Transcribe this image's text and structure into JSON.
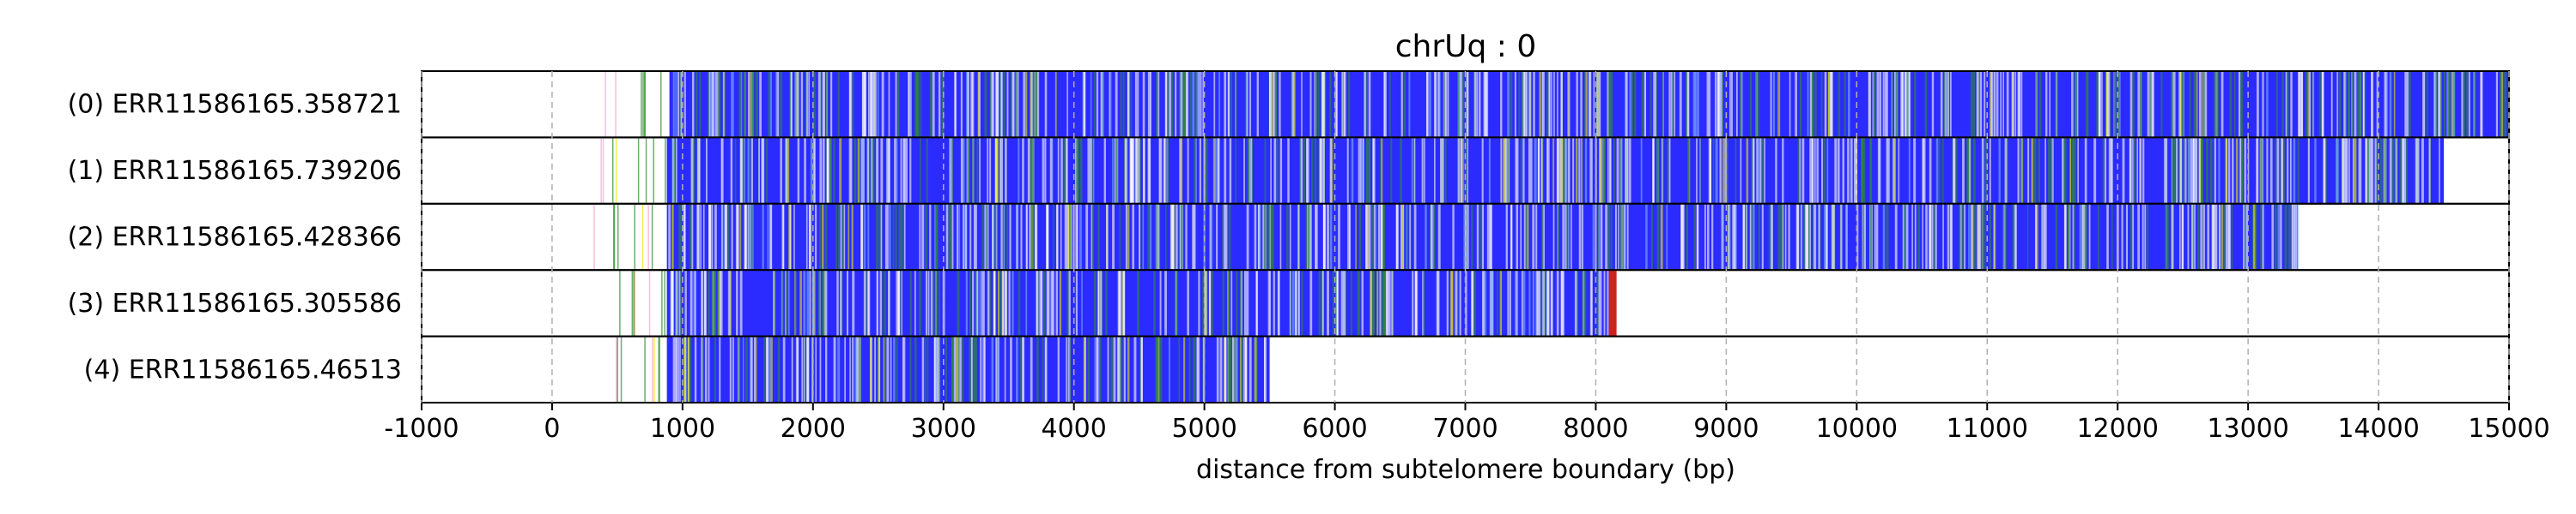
{
  "chart_data": {
    "type": "bar",
    "title": "chrUq : 0",
    "xlabel": "distance from subtelomere boundary (bp)",
    "ylabel": "",
    "xlim": [
      -1000,
      15000
    ],
    "x_ticks": [
      "-1000",
      "0",
      "1000",
      "2000",
      "3000",
      "4000",
      "5000",
      "6000",
      "7000",
      "8000",
      "9000",
      "10000",
      "11000",
      "12000",
      "13000",
      "14000",
      "15000"
    ],
    "grid": "vertical dashed",
    "colors": {
      "repeat": "#2b2bff",
      "green": "#2e8b2e",
      "yellow": "#e6e600",
      "red": "#cc2222",
      "pink": "#ff9ecf",
      "white": "#ffffff"
    },
    "reads": [
      {
        "label": "(0) ERR11586165.358721",
        "start": 0,
        "end": 15000,
        "dense_start": 900
      },
      {
        "label": "(1) ERR11586165.739206",
        "start": 0,
        "end": 14500,
        "dense_start": 880
      },
      {
        "label": "(2) ERR11586165.428366",
        "start": 0,
        "end": 13380,
        "dense_start": 880
      },
      {
        "label": "(3) ERR11586165.305586",
        "start": 0,
        "end": 8150,
        "dense_start": 880
      },
      {
        "label": "(4) ERR11586165.46513",
        "start": 0,
        "end": 5500,
        "dense_start": 880
      }
    ]
  }
}
